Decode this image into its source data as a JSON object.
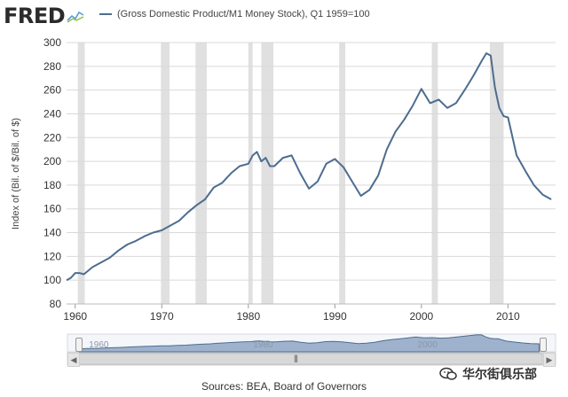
{
  "header": {
    "brand": "FRED",
    "brand_icon": "fred-line-icon",
    "series_label": "(Gross Domestic Product/M1 Money Stock), Q1 1959=100"
  },
  "footer": {
    "sources": "Sources: BEA, Board of Governors",
    "watermark": "华尔街俱乐部"
  },
  "colors": {
    "line": "#4d6d8f",
    "recession": "#e0e0e0",
    "grid": "#d9d9d9",
    "navigator_fill": "#9fb2cd",
    "navigator_line": "#4d6d8f"
  },
  "chart_data": {
    "type": "line",
    "title": "(Gross Domestic Product/M1 Money Stock), Q1 1959=100",
    "xlabel": "",
    "ylabel": "Index of (Bil. of $/Bil. of $)",
    "xlim": [
      1959,
      2015.5
    ],
    "ylim": [
      80,
      300
    ],
    "x_ticks": [
      1960,
      1970,
      1980,
      1990,
      2000,
      2010
    ],
    "x_tick_labels": [
      "1960",
      "1970",
      "1980",
      "1990",
      "2000",
      "2010"
    ],
    "y_ticks": [
      80,
      100,
      120,
      140,
      160,
      180,
      200,
      220,
      240,
      260,
      280,
      300
    ],
    "y_tick_labels": [
      "80",
      "100",
      "120",
      "140",
      "160",
      "180",
      "200",
      "220",
      "240",
      "260",
      "280",
      "300"
    ],
    "grid": true,
    "recessions": [
      [
        1960.3,
        1961.1
      ],
      [
        1969.9,
        1970.9
      ],
      [
        1973.9,
        1975.2
      ],
      [
        1980.0,
        1980.5
      ],
      [
        1981.5,
        1982.9
      ],
      [
        1990.5,
        1991.2
      ],
      [
        2001.2,
        2001.9
      ],
      [
        2007.9,
        2009.5
      ]
    ],
    "navigator_labels": [
      {
        "x": 1960,
        "label": "1960"
      },
      {
        "x": 1980,
        "label": "1980"
      },
      {
        "x": 2000,
        "label": "2000"
      }
    ],
    "series": [
      {
        "name": "(Gross Domestic Product/M1 Money Stock), Q1 1959=100",
        "x": [
          1959.0,
          1959.5,
          1960.0,
          1960.5,
          1961.0,
          1962.0,
          1963.0,
          1964.0,
          1965.0,
          1966.0,
          1967.0,
          1968.0,
          1969.0,
          1970.0,
          1971.0,
          1972.0,
          1973.0,
          1974.0,
          1975.0,
          1976.0,
          1977.0,
          1978.0,
          1979.0,
          1980.0,
          1980.5,
          1981.0,
          1981.5,
          1982.0,
          1982.5,
          1983.0,
          1984.0,
          1985.0,
          1986.0,
          1987.0,
          1988.0,
          1989.0,
          1990.0,
          1991.0,
          1992.0,
          1993.0,
          1994.0,
          1995.0,
          1996.0,
          1997.0,
          1998.0,
          1999.0,
          2000.0,
          2001.0,
          2002.0,
          2003.0,
          2004.0,
          2005.0,
          2006.0,
          2007.0,
          2007.5,
          2008.0,
          2008.5,
          2009.0,
          2009.5,
          2010.0,
          2011.0,
          2012.0,
          2013.0,
          2014.0,
          2015.0
        ],
        "values": [
          100,
          102,
          106,
          106,
          105,
          111,
          115,
          119,
          125,
          130,
          133,
          137,
          140,
          142,
          146,
          150,
          157,
          163,
          168,
          178,
          182,
          190,
          196,
          198,
          205,
          208,
          200,
          203,
          196,
          196,
          203,
          205,
          190,
          177,
          183,
          198,
          202,
          195,
          183,
          171,
          176,
          188,
          210,
          225,
          235,
          247,
          261,
          249,
          252,
          245,
          249,
          260,
          272,
          285,
          291,
          289,
          262,
          245,
          238,
          237,
          205,
          192,
          180,
          172,
          168
        ]
      }
    ]
  }
}
